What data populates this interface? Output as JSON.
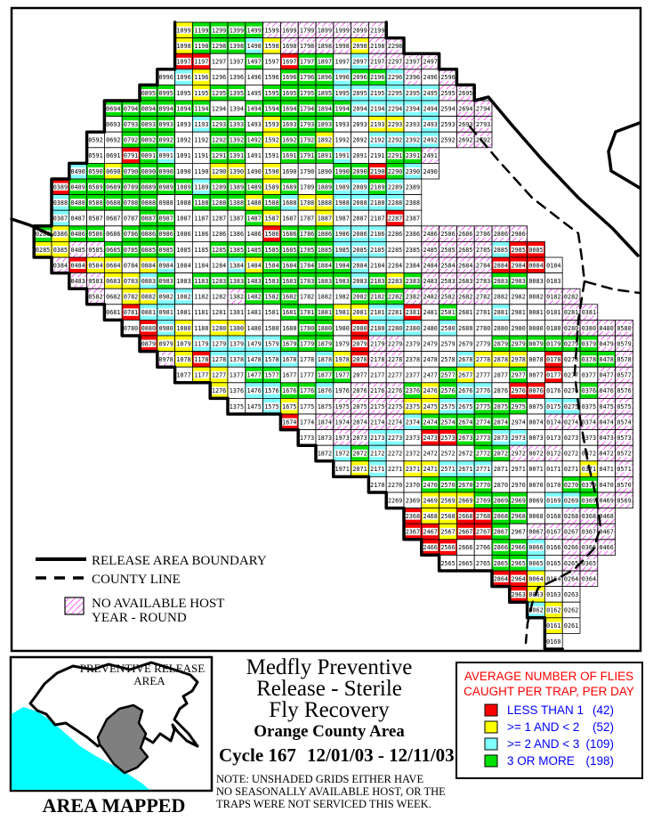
{
  "colors": {
    "cells": {
      "R": "#FF0000",
      "Y": "#FFFF00",
      "C": "#80FFFF",
      "G": "#00DF00",
      "W": "#FFFFFF"
    },
    "hatch_line": "#FF4DFF",
    "boundary": "#000000",
    "county": "#000000",
    "ocean": "#00FFFF",
    "area_mapped_fill": "#7F7F7F",
    "legend_title": "#FF0000",
    "legend_text": "#0000FF"
  },
  "map": {
    "legend": {
      "boundary_label": "RELEASE AREA BOUNDARY",
      "county_label": "COUNTY LINE",
      "nohost_line1": "NO AVAILABLE HOST",
      "nohost_line2": "YEAR - ROUND"
    },
    "grid": {
      "rows": [
        {
          "r": 99,
          "c0": 10,
          "k": "YGGGGHHHHHHH"
        },
        {
          "r": 98,
          "c0": 10,
          "k": "YGGGCYHHHHYHH"
        },
        {
          "r": 97,
          "c0": 10,
          "k": "RRWWGWRGGWCHHHH"
        },
        {
          "r": 96,
          "c0": 9,
          "k": "WCYWWWWGGGCGGCHWH"
        },
        {
          "r": 95,
          "c0": 8,
          "k": "GGWYGGWGGGGCCCCCCHH"
        },
        {
          "r": 94,
          "c0": 6,
          "k": "GGGGGGWWGGGGGGCCCCCWHH"
        },
        {
          "r": 93,
          "c0": 6,
          "k": "WGGGWCGGWYGGGWWYYWCWHH"
        },
        {
          "r": 92,
          "c0": 5,
          "k": "WWGGGWWGGGYGGYWWCCCCWHH"
        },
        {
          "r": 91,
          "c0": 5,
          "k": "WWRGCWWGGWWGGGCWWGGH"
        },
        {
          "r": 90,
          "c0": 4,
          "k": "CGYGGGWWYYWYWWWGGRGCW"
        },
        {
          "r": 89,
          "c0": 3,
          "k": "RGGGGGGGCGGGYGWGCCGCW"
        },
        {
          "r": 88,
          "c0": 3,
          "k": "CGGGGGWWGGGYGCYYCCCCW"
        },
        {
          "r": 87,
          "c0": 3,
          "k": "CWWWWGGWWWWGYWWYWWWRW"
        },
        {
          "r": 86,
          "c0": 2,
          "k": "GYGGWGGGWWWWWRGGGCCCWWHHHHHH"
        },
        {
          "r": 85,
          "c0": 2,
          "k": "YYHHGGGGWWGGGGGGGCCCWWHHHHCRR"
        },
        {
          "r": 84,
          "c0": 3,
          "k": "HRYYWYCWWWCYGGGGGCWWWHHHHRRRW"
        },
        {
          "r": 83,
          "c0": 4,
          "k": "HHYYCGWGGGGGGGGGCGYGHHHHGGWW"
        },
        {
          "r": 82,
          "c0": 5,
          "k": "HWYYCCWWHGGGWWWGGGHHHHHWWWHH"
        },
        {
          "r": 81,
          "c0": 6,
          "k": "WRCCWWWWWWGGGYYCCRWGWWCWWWHH"
        },
        {
          "r": 80,
          "c0": 7,
          "k": "WRCYWYYWWWGGWRCCCWCWWWWWWHHHH"
        },
        {
          "r": 79,
          "c0": 8,
          "k": "RYYCCCCCGGGWRHHWWWWWGGGGGGHH"
        },
        {
          "r": 78,
          "c0": 9,
          "k": "HYRCCCCCWCYRHHWWWCYYYWRWGGH"
        },
        {
          "r": 77,
          "c0": 10,
          "k": "WYYWGGWWGGWWWWWGYWWGWRWWHH"
        },
        {
          "r": 76,
          "c0": 12,
          "k": "YWCCGGCWHHHGYGCCWRRWWGHH"
        },
        {
          "r": 75,
          "c0": 13,
          "k": "WWCYWWHHHHYYCCGGGWCCWHH"
        },
        {
          "r": 74,
          "c0": 16,
          "k": "RWHHHHHCGGGGGWWHHHHH"
        },
        {
          "r": 73,
          "c0": 17,
          "k": "WWHHCCWRRGGCCWWWWHH"
        },
        {
          "r": 72,
          "c0": 18,
          "k": "WCGCWWWWWGGHHHWWHH"
        },
        {
          "r": 71,
          "c0": 19,
          "k": "WYCWYYCCCWWWWWYWH"
        },
        {
          "r": 70,
          "c0": 21,
          "k": "WWWGGGGWWWWGGWH"
        },
        {
          "r": 69,
          "c0": 22,
          "k": "WWYYYGGGWCCGHH"
        },
        {
          "r": 68,
          "c0": 23,
          "k": "RYYRRGGWWHHH"
        },
        {
          "r": 67,
          "c0": 23,
          "k": "RRYRRGWHHHHH"
        },
        {
          "r": 66,
          "c0": 24,
          "k": "RRWWGGCWHHH"
        },
        {
          "r": 65,
          "c0": 25,
          "k": "WWWGGCWHH"
        },
        {
          "r": 64,
          "c0": 28,
          "k": "RRYWHH"
        },
        {
          "r": 63,
          "c0": 29,
          "k": "RYWW"
        },
        {
          "r": 62,
          "c0": 30,
          "k": "CYW"
        },
        {
          "r": 61,
          "c0": 31,
          "k": "YW"
        },
        {
          "r": 60,
          "c0": 31,
          "k": "W"
        }
      ]
    }
  },
  "inset": {
    "title_line1": "PREVENTIVE RELEASE",
    "title_line2": "AREA",
    "caption": "AREA MAPPED"
  },
  "titleBlock": {
    "line1": "Medfly Preventive",
    "line2": "Release - Sterile",
    "line3": "Fly Recovery",
    "subtitle": "Orange County Area",
    "cycle": "Cycle 167",
    "dates": "12/01/03 - 12/11/03",
    "note1": "NOTE: UNSHADED GRIDS EITHER HAVE",
    "note2": "NO SEASONALLY AVAILABLE HOST, OR THE",
    "note3": "TRAPS WERE NOT SERVICED THIS WEEK."
  },
  "flyLegend": {
    "title_line1": "AVERAGE NUMBER OF FLIES",
    "title_line2": "CAUGHT PER TRAP, PER DAY",
    "items": [
      {
        "color": "R",
        "label": "LESS THAN 1",
        "count": "(42)"
      },
      {
        "color": "Y",
        "label": ">= 1 AND < 2",
        "count": "(52)"
      },
      {
        "color": "C",
        "label": ">= 2 AND < 3",
        "count": "(109)"
      },
      {
        "color": "G",
        "label": "3 OR MORE",
        "count": "(198)"
      }
    ]
  }
}
